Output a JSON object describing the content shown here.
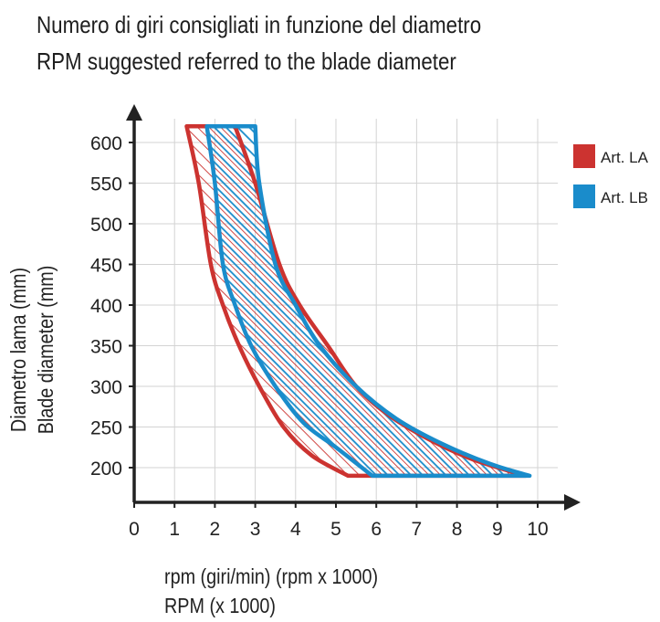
{
  "title_line1": "Numero di giri consigliati in funzione del diametro",
  "title_line2": "RPM suggested referred to the blade diameter",
  "colors": {
    "art_la": "#cc3330",
    "art_lb": "#1a8ccb",
    "axis": "#222222"
  },
  "chart_data": {
    "type": "area",
    "xlabel": [
      "rpm (giri/min) (rpm x 1000)",
      "RPM (x 1000)"
    ],
    "ylabel": [
      "Diametro lama (mm)",
      "Blade diameter (mm)"
    ],
    "x_ticks": [
      0,
      1,
      2,
      3,
      4,
      5,
      6,
      7,
      8,
      9,
      10
    ],
    "y_ticks": [
      200,
      250,
      300,
      350,
      400,
      450,
      500,
      550,
      600
    ],
    "xlim": [
      0,
      10.5
    ],
    "ylim": [
      165,
      630
    ],
    "grid": true,
    "legend_position": "top-right",
    "series": [
      {
        "name": "Art. LA",
        "color": "#cc3330",
        "min_rpm": [
          [
            1.3,
            620
          ],
          [
            1.6,
            550
          ],
          [
            1.9,
            450
          ],
          [
            2.2,
            400
          ],
          [
            2.6,
            350
          ],
          [
            3.1,
            300
          ],
          [
            3.7,
            250
          ],
          [
            4.4,
            215
          ],
          [
            5.3,
            190
          ]
        ],
        "max_rpm": [
          [
            2.5,
            620
          ],
          [
            3.0,
            550
          ],
          [
            3.6,
            450
          ],
          [
            4.1,
            400
          ],
          [
            4.8,
            350
          ],
          [
            5.5,
            300
          ],
          [
            6.3,
            265
          ],
          [
            7.3,
            235
          ],
          [
            8.4,
            210
          ],
          [
            9.7,
            190
          ]
        ]
      },
      {
        "name": "Art. LB",
        "color": "#1a8ccb",
        "min_rpm": [
          [
            1.8,
            620
          ],
          [
            2.0,
            550
          ],
          [
            2.2,
            450
          ],
          [
            2.5,
            400
          ],
          [
            2.9,
            350
          ],
          [
            3.5,
            300
          ],
          [
            4.2,
            255
          ],
          [
            5.0,
            225
          ],
          [
            5.9,
            190
          ]
        ],
        "max_rpm": [
          [
            3.0,
            620
          ],
          [
            3.1,
            550
          ],
          [
            3.5,
            450
          ],
          [
            4.0,
            400
          ],
          [
            4.6,
            350
          ],
          [
            5.5,
            300
          ],
          [
            6.5,
            260
          ],
          [
            7.6,
            230
          ],
          [
            8.8,
            205
          ],
          [
            9.8,
            190
          ]
        ]
      }
    ]
  }
}
